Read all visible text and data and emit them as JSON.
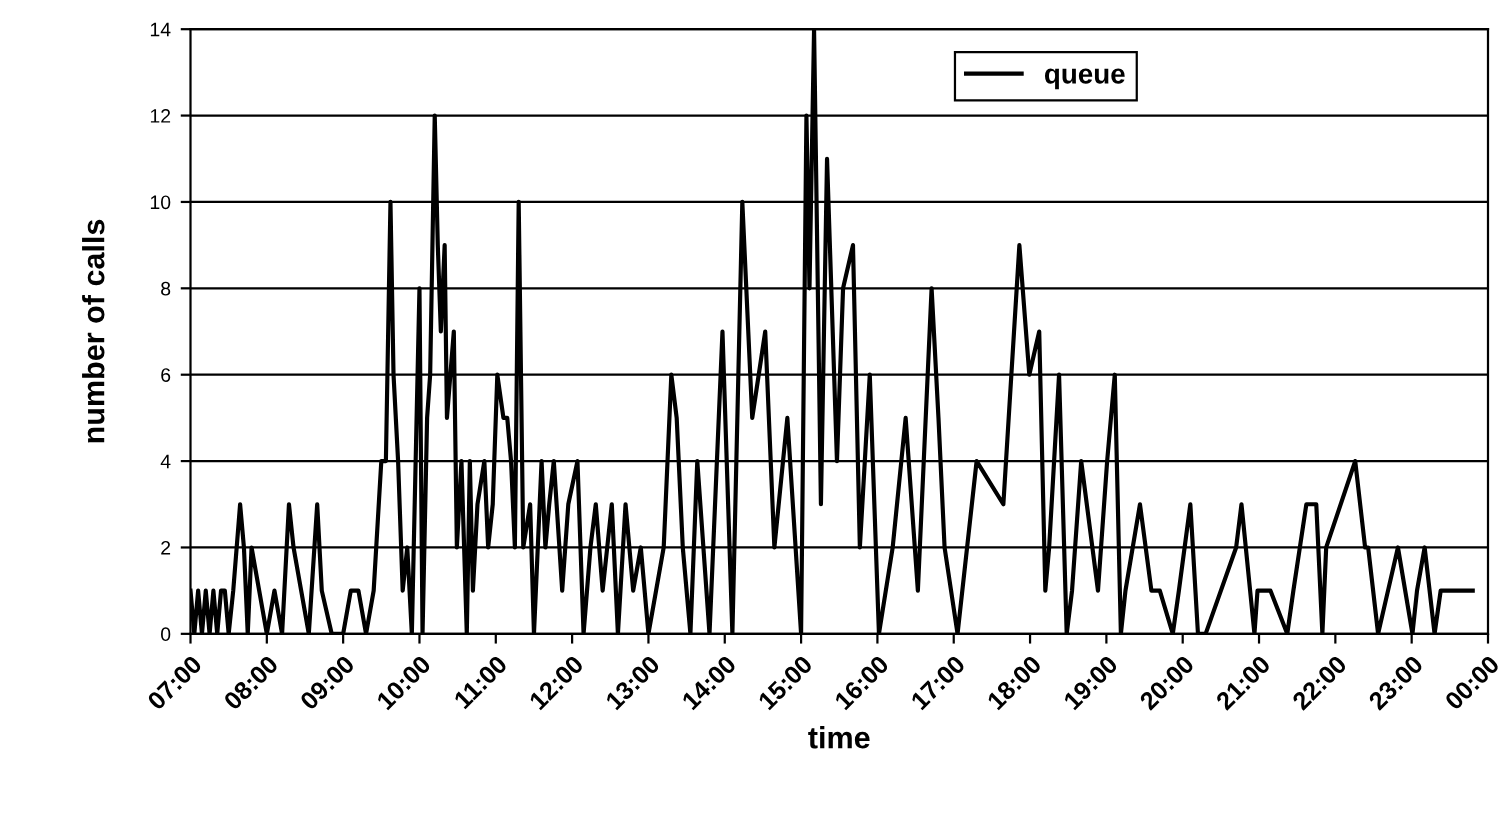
{
  "chart_data": {
    "type": "line",
    "xlabel": "time",
    "ylabel": "number of calls",
    "xlim": [
      7,
      24
    ],
    "xticks": [
      {
        "value": 7,
        "label": "07:00"
      },
      {
        "value": 8,
        "label": "08:00"
      },
      {
        "value": 9,
        "label": "09:00"
      },
      {
        "value": 10,
        "label": "10:00"
      },
      {
        "value": 11,
        "label": "11:00"
      },
      {
        "value": 12,
        "label": "12:00"
      },
      {
        "value": 13,
        "label": "13:00"
      },
      {
        "value": 14,
        "label": "14:00"
      },
      {
        "value": 15,
        "label": "15:00"
      },
      {
        "value": 16,
        "label": "16:00"
      },
      {
        "value": 17,
        "label": "17:00"
      },
      {
        "value": 18,
        "label": "18:00"
      },
      {
        "value": 19,
        "label": "19:00"
      },
      {
        "value": 20,
        "label": "20:00"
      },
      {
        "value": 21,
        "label": "21:00"
      },
      {
        "value": 22,
        "label": "22:00"
      },
      {
        "value": 23,
        "label": "23:00"
      },
      {
        "value": 24,
        "label": "00:00"
      }
    ],
    "ylim": [
      0,
      14
    ],
    "yticks": [
      0,
      2,
      4,
      6,
      8,
      10,
      12,
      14
    ],
    "grid": "y",
    "legend": "top right",
    "marker": "none",
    "line_style": "solid",
    "series": [
      {
        "name": "queue",
        "color": "#000000",
        "x": [
          7.0,
          7.05,
          7.1,
          7.15,
          7.2,
          7.25,
          7.3,
          7.35,
          7.4,
          7.45,
          7.5,
          7.56,
          7.65,
          7.7,
          7.75,
          7.8,
          7.9,
          8.0,
          8.1,
          8.2,
          8.29,
          8.35,
          8.45,
          8.55,
          8.66,
          8.72,
          8.85,
          9.0,
          9.1,
          9.2,
          9.3,
          9.4,
          9.5,
          9.56,
          9.62,
          9.66,
          9.72,
          9.78,
          9.84,
          9.9,
          10.0,
          10.04,
          10.1,
          10.14,
          10.2,
          10.24,
          10.28,
          10.33,
          10.36,
          10.45,
          10.49,
          10.55,
          10.62,
          10.66,
          10.7,
          10.76,
          10.85,
          10.9,
          10.96,
          11.02,
          11.1,
          11.15,
          11.2,
          11.25,
          11.3,
          11.36,
          11.45,
          11.5,
          11.6,
          11.65,
          11.7,
          11.76,
          11.87,
          11.95,
          12.07,
          12.15,
          12.24,
          12.31,
          12.4,
          12.52,
          12.6,
          12.7,
          12.8,
          12.9,
          13.0,
          13.1,
          13.2,
          13.3,
          13.37,
          13.45,
          13.55,
          13.64,
          13.8,
          13.97,
          14.1,
          14.23,
          14.36,
          14.53,
          14.65,
          14.82,
          15.0,
          15.07,
          15.11,
          15.17,
          15.26,
          15.34,
          15.47,
          15.55,
          15.68,
          15.77,
          15.9,
          16.02,
          16.2,
          16.37,
          16.53,
          16.71,
          16.8,
          16.88,
          17.05,
          17.3,
          17.65,
          17.86,
          17.99,
          18.12,
          18.2,
          18.25,
          18.38,
          18.48,
          18.55,
          18.67,
          18.89,
          19.01,
          19.11,
          19.19,
          19.25,
          19.44,
          19.59,
          19.7,
          19.87,
          19.95,
          20.1,
          20.2,
          20.3,
          20.7,
          20.77,
          20.94,
          20.98,
          21.15,
          21.37,
          21.45,
          21.62,
          21.75,
          21.83,
          21.88,
          22.26,
          22.39,
          22.43,
          22.56,
          22.69,
          22.82,
          23.01,
          23.07,
          23.17,
          23.3,
          23.38,
          23.6,
          23.8
        ],
        "values": [
          1,
          0,
          1,
          0,
          1,
          0,
          1,
          0,
          1,
          1,
          0,
          1,
          3,
          2,
          0,
          2,
          1,
          0,
          1,
          0,
          3,
          2,
          1,
          0,
          3,
          1,
          0,
          0,
          1,
          1,
          0,
          1,
          4,
          4,
          10,
          6,
          4,
          1,
          2,
          0,
          8,
          0,
          5,
          6,
          12,
          9,
          7,
          9,
          5,
          7,
          2,
          4,
          0,
          4,
          1,
          3,
          4,
          2,
          3,
          6,
          5,
          5,
          4,
          2,
          10,
          2,
          3,
          0,
          4,
          2,
          3,
          4,
          1,
          3,
          4,
          0,
          2,
          3,
          1,
          3,
          0,
          3,
          1,
          2,
          0,
          1,
          2,
          6,
          5,
          2,
          0,
          4,
          0,
          7,
          0,
          10,
          5,
          7,
          2,
          5,
          0,
          12,
          8,
          14,
          3,
          11,
          4,
          8,
          9,
          2,
          6,
          0,
          2,
          5,
          1,
          8,
          5,
          2,
          0,
          4,
          3,
          9,
          6,
          7,
          1,
          2,
          6,
          0,
          1,
          4,
          1,
          4,
          6,
          0,
          1,
          3,
          1,
          1,
          0,
          1,
          3,
          0,
          0,
          2,
          3,
          0,
          1,
          1,
          0,
          1,
          3,
          3,
          0,
          2,
          4,
          2,
          2,
          0,
          1,
          2,
          0,
          1,
          2,
          0,
          1,
          1,
          1
        ]
      }
    ]
  }
}
